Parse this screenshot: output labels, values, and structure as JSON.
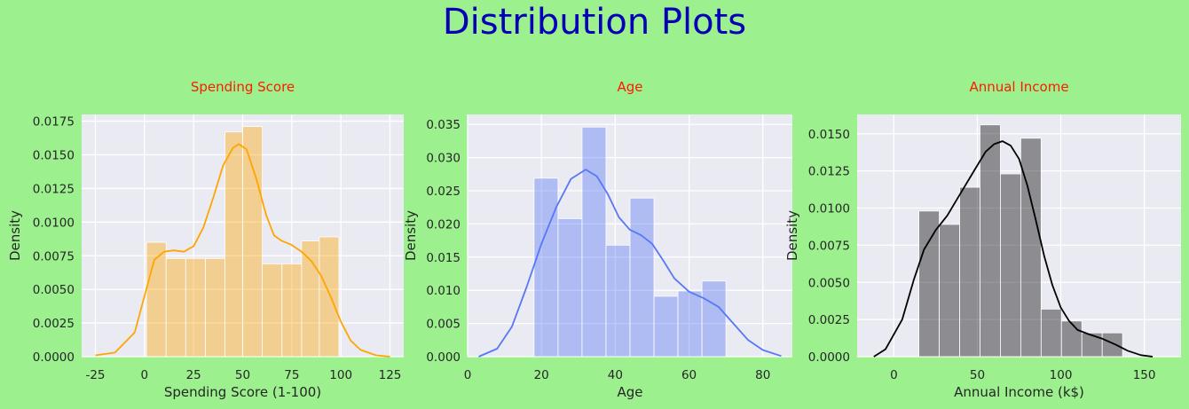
{
  "figure": {
    "title": "Distribution Plots",
    "background": "#9cf08e",
    "title_color": "#0000b8",
    "subplot_title_color": "#ff1a00"
  },
  "chart_data": [
    {
      "type": "histogram",
      "title": "Spending Score",
      "xlabel": "Spending Score (1-100)",
      "ylabel": "Density",
      "xlim": [
        -32,
        132
      ],
      "ylim": [
        0,
        0.018
      ],
      "xticks": [
        -25,
        0,
        25,
        50,
        75,
        100,
        125
      ],
      "yticks": [
        0.0,
        0.0025,
        0.005,
        0.0075,
        0.01,
        0.0125,
        0.015,
        0.0175
      ],
      "ytick_labels": [
        "0.0000",
        "0.0025",
        "0.0050",
        "0.0075",
        "0.0100",
        "0.0125",
        "0.0150",
        "0.0175"
      ],
      "color": "#ffa500",
      "bins": [
        {
          "x0": 1,
          "x1": 11,
          "density": 0.0085
        },
        {
          "x0": 11,
          "x1": 21,
          "density": 0.0073
        },
        {
          "x0": 21,
          "x1": 31,
          "density": 0.0073
        },
        {
          "x0": 31,
          "x1": 41,
          "density": 0.0073
        },
        {
          "x0": 41,
          "x1": 50,
          "density": 0.0167
        },
        {
          "x0": 50,
          "x1": 60,
          "density": 0.0171
        },
        {
          "x0": 60,
          "x1": 70,
          "density": 0.0069
        },
        {
          "x0": 70,
          "x1": 80,
          "density": 0.0069
        },
        {
          "x0": 80,
          "x1": 89,
          "density": 0.0086
        },
        {
          "x0": 89,
          "x1": 99,
          "density": 0.0089
        }
      ],
      "kde": [
        [
          -25,
          0.0001
        ],
        [
          -15,
          0.0003
        ],
        [
          -5,
          0.0018
        ],
        [
          0,
          0.0045
        ],
        [
          5,
          0.0072
        ],
        [
          10,
          0.0078
        ],
        [
          15,
          0.0079
        ],
        [
          20,
          0.0078
        ],
        [
          25,
          0.0082
        ],
        [
          30,
          0.0096
        ],
        [
          35,
          0.0118
        ],
        [
          40,
          0.0142
        ],
        [
          45,
          0.0155
        ],
        [
          48,
          0.0158
        ],
        [
          52,
          0.0154
        ],
        [
          57,
          0.0132
        ],
        [
          62,
          0.0105
        ],
        [
          66,
          0.009
        ],
        [
          70,
          0.0086
        ],
        [
          75,
          0.0083
        ],
        [
          80,
          0.0078
        ],
        [
          85,
          0.0071
        ],
        [
          90,
          0.006
        ],
        [
          95,
          0.0044
        ],
        [
          100,
          0.0026
        ],
        [
          105,
          0.0012
        ],
        [
          110,
          0.0005
        ],
        [
          118,
          0.0001
        ],
        [
          125,
          0.0
        ]
      ]
    },
    {
      "type": "histogram",
      "title": "Age",
      "xlabel": "Age",
      "ylabel": "Density",
      "xlim": [
        0,
        88
      ],
      "ylim": [
        0,
        0.0365
      ],
      "xticks": [
        0,
        20,
        40,
        60,
        80
      ],
      "yticks": [
        0.0,
        0.005,
        0.01,
        0.015,
        0.02,
        0.025,
        0.03,
        0.035
      ],
      "ytick_labels": [
        "0.000",
        "0.005",
        "0.010",
        "0.015",
        "0.020",
        "0.025",
        "0.030",
        "0.035"
      ],
      "color": "#5877f6",
      "bins": [
        {
          "x0": 18,
          "x1": 24.5,
          "density": 0.0269
        },
        {
          "x0": 24.5,
          "x1": 31,
          "density": 0.0208
        },
        {
          "x0": 31,
          "x1": 37.5,
          "density": 0.0346
        },
        {
          "x0": 37.5,
          "x1": 44,
          "density": 0.0168
        },
        {
          "x0": 44,
          "x1": 50.5,
          "density": 0.0239
        },
        {
          "x0": 50.5,
          "x1": 57,
          "density": 0.0091
        },
        {
          "x0": 57,
          "x1": 63.5,
          "density": 0.0099
        },
        {
          "x0": 63.5,
          "x1": 70,
          "density": 0.0114
        }
      ],
      "kde": [
        [
          3,
          0.0
        ],
        [
          8,
          0.0012
        ],
        [
          12,
          0.0045
        ],
        [
          16,
          0.0105
        ],
        [
          20,
          0.017
        ],
        [
          24,
          0.0225
        ],
        [
          28,
          0.0268
        ],
        [
          32,
          0.0282
        ],
        [
          35,
          0.0272
        ],
        [
          38,
          0.0245
        ],
        [
          41,
          0.021
        ],
        [
          44,
          0.0191
        ],
        [
          47,
          0.0183
        ],
        [
          50,
          0.017
        ],
        [
          53,
          0.0145
        ],
        [
          56,
          0.0118
        ],
        [
          60,
          0.0098
        ],
        [
          64,
          0.0088
        ],
        [
          68,
          0.0075
        ],
        [
          72,
          0.005
        ],
        [
          76,
          0.0025
        ],
        [
          80,
          0.001
        ],
        [
          85,
          0.0001
        ]
      ]
    },
    {
      "type": "histogram",
      "title": "Annual Income",
      "xlabel": "Annual Income (k$)",
      "ylabel": "Density",
      "xlim": [
        -22,
        172
      ],
      "ylim": [
        0,
        0.0163
      ],
      "xticks": [
        0,
        50,
        100,
        150
      ],
      "yticks": [
        0.0,
        0.0025,
        0.005,
        0.0075,
        0.01,
        0.0125,
        0.015
      ],
      "ytick_labels": [
        "0.0000",
        "0.0025",
        "0.0050",
        "0.0075",
        "0.0100",
        "0.0125",
        "0.0150"
      ],
      "color": "#000000",
      "bins": [
        {
          "x0": 15,
          "x1": 27.2,
          "density": 0.0098
        },
        {
          "x0": 27.2,
          "x1": 39.4,
          "density": 0.0089
        },
        {
          "x0": 39.4,
          "x1": 51.6,
          "density": 0.0114
        },
        {
          "x0": 51.6,
          "x1": 63.8,
          "density": 0.0156
        },
        {
          "x0": 63.8,
          "x1": 76.0,
          "density": 0.0123
        },
        {
          "x0": 76.0,
          "x1": 88.2,
          "density": 0.0147
        },
        {
          "x0": 88.2,
          "x1": 100.4,
          "density": 0.0032
        },
        {
          "x0": 100.4,
          "x1": 112.6,
          "density": 0.0024
        },
        {
          "x0": 112.6,
          "x1": 124.8,
          "density": 0.0016
        },
        {
          "x0": 124.8,
          "x1": 137,
          "density": 0.0016
        }
      ],
      "kde": [
        [
          -12,
          0.0
        ],
        [
          -5,
          0.0005
        ],
        [
          5,
          0.0025
        ],
        [
          12,
          0.0052
        ],
        [
          18,
          0.0072
        ],
        [
          25,
          0.0085
        ],
        [
          32,
          0.0095
        ],
        [
          40,
          0.011
        ],
        [
          48,
          0.0125
        ],
        [
          55,
          0.0138
        ],
        [
          60,
          0.0143
        ],
        [
          65,
          0.0145
        ],
        [
          70,
          0.0142
        ],
        [
          75,
          0.0133
        ],
        [
          80,
          0.0115
        ],
        [
          85,
          0.0092
        ],
        [
          90,
          0.0068
        ],
        [
          95,
          0.0048
        ],
        [
          100,
          0.0033
        ],
        [
          105,
          0.0024
        ],
        [
          110,
          0.0018
        ],
        [
          117,
          0.0015
        ],
        [
          125,
          0.0012
        ],
        [
          133,
          0.0008
        ],
        [
          140,
          0.0004
        ],
        [
          148,
          0.0001
        ],
        [
          155,
          0.0
        ]
      ]
    }
  ]
}
